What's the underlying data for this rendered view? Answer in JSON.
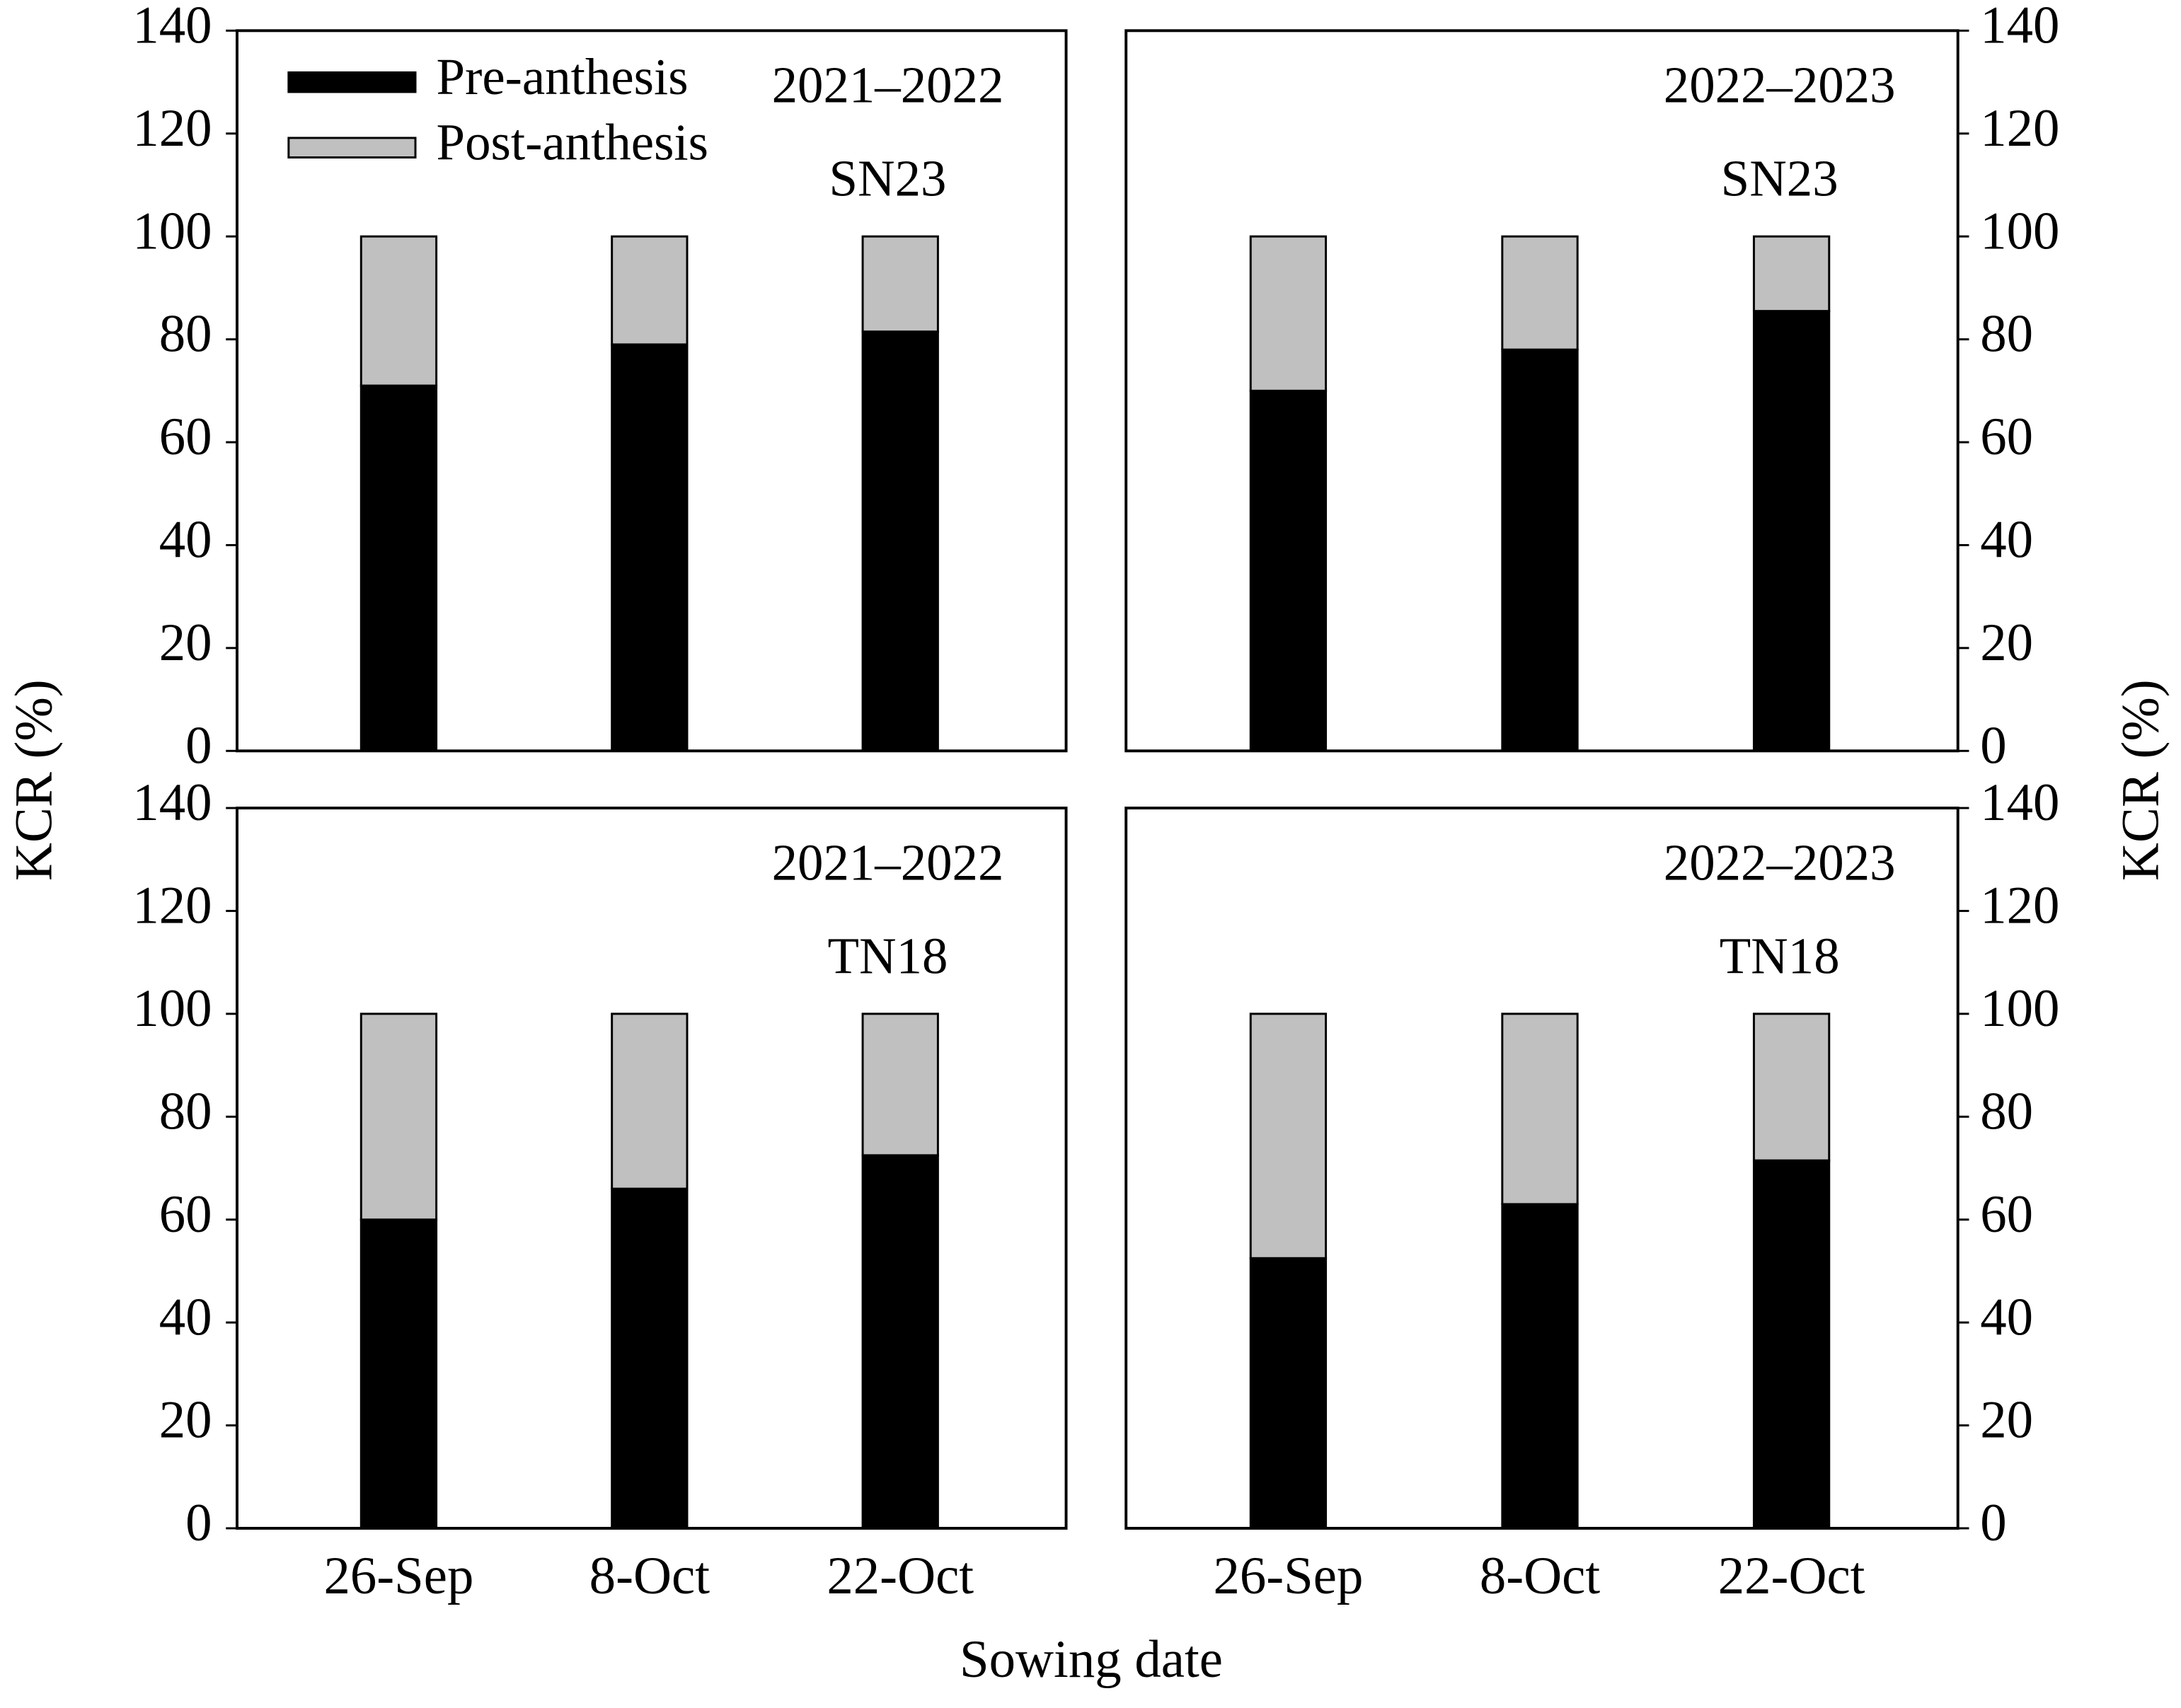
{
  "chart_data": [
    {
      "type": "bar",
      "stacked": true,
      "annotations": [
        "2021–2022",
        "SN23"
      ],
      "categories": [
        null,
        null,
        null
      ],
      "series": [
        {
          "name": "Pre-anthesis",
          "color": "#000000",
          "values": [
            71,
            79,
            81.5
          ]
        },
        {
          "name": "Post-anthesis",
          "color": "#c0c0c0",
          "values": [
            29,
            21,
            18.5
          ]
        }
      ],
      "ylim": [
        0,
        140
      ],
      "yticks": [
        0,
        20,
        40,
        60,
        80,
        100,
        120,
        140
      ],
      "yaxis_side": "left",
      "y_label": "KCR (%)",
      "legend": "upper left"
    },
    {
      "type": "bar",
      "stacked": true,
      "annotations": [
        "2022–2023",
        "SN23"
      ],
      "categories": [
        null,
        null,
        null
      ],
      "series": [
        {
          "name": "Pre-anthesis",
          "color": "#000000",
          "values": [
            70,
            78,
            85.5
          ]
        },
        {
          "name": "Post-anthesis",
          "color": "#c0c0c0",
          "values": [
            30,
            22,
            14.5
          ]
        }
      ],
      "ylim": [
        0,
        140
      ],
      "yticks": [
        0,
        20,
        40,
        60,
        80,
        100,
        120,
        140
      ],
      "yaxis_side": "right",
      "y_label": "KCR (%)"
    },
    {
      "type": "bar",
      "stacked": true,
      "annotations": [
        "2021–2022",
        "TN18"
      ],
      "categories": [
        "26-Sep",
        "8-Oct",
        "22-Oct"
      ],
      "series": [
        {
          "name": "Pre-anthesis",
          "color": "#000000",
          "values": [
            60,
            66,
            72.5
          ]
        },
        {
          "name": "Post-anthesis",
          "color": "#c0c0c0",
          "values": [
            40,
            34,
            27.5
          ]
        }
      ],
      "ylim": [
        0,
        140
      ],
      "yticks": [
        0,
        20,
        40,
        60,
        80,
        100,
        120,
        140
      ],
      "yaxis_side": "left",
      "x_label": "Sowing date"
    },
    {
      "type": "bar",
      "stacked": true,
      "annotations": [
        "2022–2023",
        "TN18"
      ],
      "categories": [
        "26-Sep",
        "8-Oct",
        "22-Oct"
      ],
      "series": [
        {
          "name": "Pre-anthesis",
          "color": "#000000",
          "values": [
            52.5,
            63,
            71.5
          ]
        },
        {
          "name": "Post-anthesis",
          "color": "#c0c0c0",
          "values": [
            47.5,
            37,
            28.5
          ]
        }
      ],
      "ylim": [
        0,
        140
      ],
      "yticks": [
        0,
        20,
        40,
        60,
        80,
        100,
        120,
        140
      ],
      "yaxis_side": "right"
    }
  ]
}
